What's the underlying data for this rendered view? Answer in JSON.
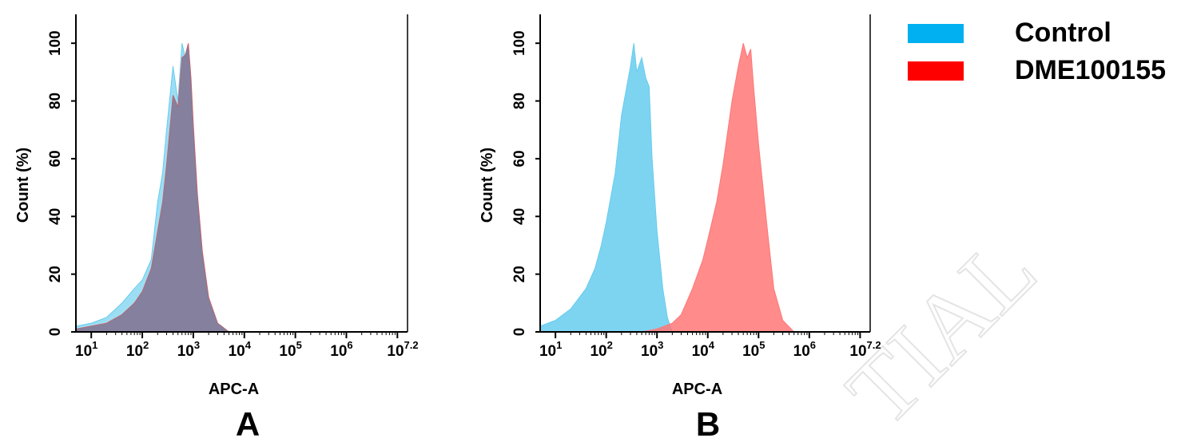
{
  "legend": {
    "items": [
      {
        "label": "Control",
        "color": "#00b0f0"
      },
      {
        "label": "DME100155",
        "color": "#ff0000"
      }
    ]
  },
  "watermark": "TIAL",
  "chart_data": [
    {
      "type": "area",
      "panel_label": "A",
      "xlabel": "APC-A",
      "ylabel": "Count (%)",
      "xscale": "log",
      "xlim": [
        5,
        15800000
      ],
      "ylim": [
        0,
        110
      ],
      "x_ticks": [
        {
          "base": "10",
          "exp": "1",
          "value": 10
        },
        {
          "base": "10",
          "exp": "2",
          "value": 100
        },
        {
          "base": "10",
          "exp": "3",
          "value": 1000
        },
        {
          "base": "10",
          "exp": "4",
          "value": 10000
        },
        {
          "base": "10",
          "exp": "5",
          "value": 100000
        },
        {
          "base": "10",
          "exp": "6",
          "value": 1000000
        },
        {
          "base": "10",
          "exp": "7.2",
          "value": 15800000
        }
      ],
      "y_ticks": [
        "0",
        "20",
        "40",
        "60",
        "80",
        "100"
      ],
      "series": [
        {
          "name": "Control",
          "color": "#66ccee",
          "points": [
            [
              5,
              2
            ],
            [
              10,
              3
            ],
            [
              20,
              5
            ],
            [
              40,
              10
            ],
            [
              70,
              15
            ],
            [
              100,
              18
            ],
            [
              150,
              25
            ],
            [
              200,
              45
            ],
            [
              250,
              55
            ],
            [
              300,
              70
            ],
            [
              400,
              92
            ],
            [
              500,
              80
            ],
            [
              600,
              100
            ],
            [
              700,
              95
            ],
            [
              800,
              99
            ],
            [
              900,
              85
            ],
            [
              1000,
              70
            ],
            [
              1200,
              45
            ],
            [
              1500,
              25
            ],
            [
              2000,
              10
            ],
            [
              3000,
              3
            ],
            [
              5000,
              0
            ]
          ]
        },
        {
          "name": "DME100155",
          "color": "#ee5555",
          "points": [
            [
              5,
              1
            ],
            [
              10,
              2
            ],
            [
              20,
              3
            ],
            [
              40,
              6
            ],
            [
              70,
              10
            ],
            [
              100,
              14
            ],
            [
              150,
              22
            ],
            [
              200,
              35
            ],
            [
              250,
              45
            ],
            [
              300,
              58
            ],
            [
              400,
              82
            ],
            [
              500,
              78
            ],
            [
              600,
              95
            ],
            [
              700,
              96
            ],
            [
              800,
              100
            ],
            [
              900,
              88
            ],
            [
              1000,
              72
            ],
            [
              1200,
              48
            ],
            [
              1500,
              28
            ],
            [
              2000,
              12
            ],
            [
              3000,
              3
            ],
            [
              5000,
              0
            ]
          ]
        }
      ]
    },
    {
      "type": "area",
      "panel_label": "B",
      "xlabel": "APC-A",
      "ylabel": "Count (%)",
      "xscale": "log",
      "xlim": [
        5,
        15800000
      ],
      "ylim": [
        0,
        110
      ],
      "x_ticks": [
        {
          "base": "10",
          "exp": "1",
          "value": 10
        },
        {
          "base": "10",
          "exp": "2",
          "value": 100
        },
        {
          "base": "10",
          "exp": "3",
          "value": 1000
        },
        {
          "base": "10",
          "exp": "4",
          "value": 10000
        },
        {
          "base": "10",
          "exp": "5",
          "value": 100000
        },
        {
          "base": "10",
          "exp": "6",
          "value": 1000000
        },
        {
          "base": "10",
          "exp": "7.2",
          "value": 15800000
        }
      ],
      "y_ticks": [
        "0",
        "20",
        "40",
        "60",
        "80",
        "100"
      ],
      "series": [
        {
          "name": "Control",
          "color": "#66ccee",
          "points": [
            [
              5,
              2
            ],
            [
              10,
              4
            ],
            [
              20,
              8
            ],
            [
              40,
              15
            ],
            [
              60,
              22
            ],
            [
              80,
              30
            ],
            [
              100,
              38
            ],
            [
              150,
              55
            ],
            [
              200,
              75
            ],
            [
              300,
              92
            ],
            [
              350,
              100
            ],
            [
              400,
              90
            ],
            [
              500,
              95
            ],
            [
              600,
              88
            ],
            [
              700,
              85
            ],
            [
              800,
              60
            ],
            [
              1000,
              35
            ],
            [
              1300,
              15
            ],
            [
              1600,
              5
            ],
            [
              2000,
              0
            ]
          ]
        },
        {
          "name": "DME100155",
          "color": "#ff7777",
          "points": [
            [
              500,
              0
            ],
            [
              1000,
              1
            ],
            [
              2000,
              3
            ],
            [
              3000,
              6
            ],
            [
              5000,
              15
            ],
            [
              8000,
              25
            ],
            [
              10000,
              32
            ],
            [
              15000,
              45
            ],
            [
              20000,
              58
            ],
            [
              30000,
              80
            ],
            [
              40000,
              92
            ],
            [
              50000,
              100
            ],
            [
              60000,
              95
            ],
            [
              70000,
              98
            ],
            [
              80000,
              85
            ],
            [
              100000,
              65
            ],
            [
              150000,
              35
            ],
            [
              200000,
              15
            ],
            [
              300000,
              4
            ],
            [
              500000,
              0
            ]
          ]
        }
      ]
    }
  ]
}
